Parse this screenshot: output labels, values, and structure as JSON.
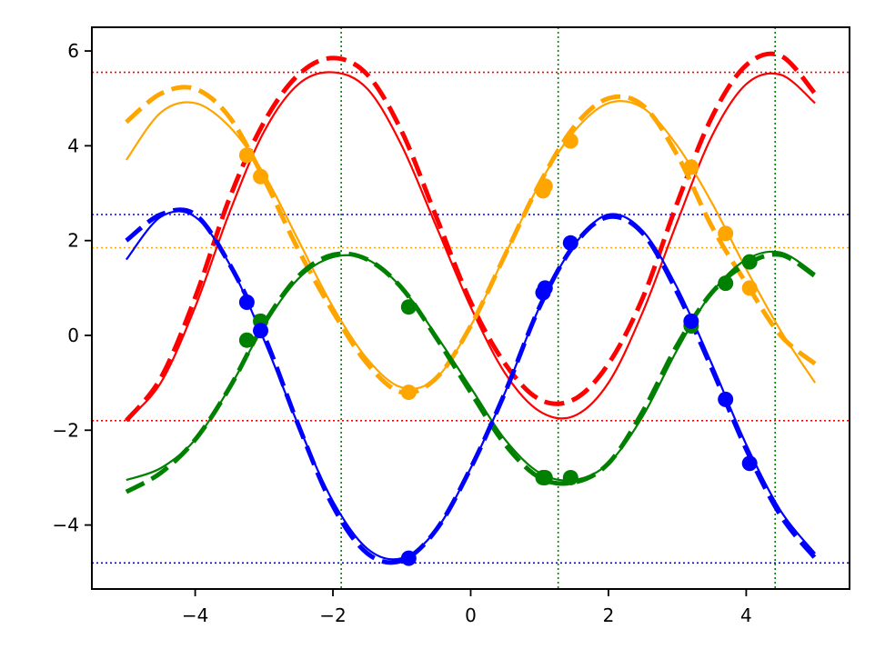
{
  "chart_data": {
    "type": "line",
    "title": "",
    "xlabel": "",
    "ylabel": "",
    "xlim": [
      -5.5,
      5.5
    ],
    "ylim": [
      -5.35,
      6.5
    ],
    "grid": false,
    "x_ticks": [
      -4,
      -2,
      0,
      2,
      4
    ],
    "x_tick_labels": [
      "−4",
      "−2",
      "0",
      "2",
      "4"
    ],
    "y_ticks": [
      -4,
      -2,
      0,
      2,
      4,
      6
    ],
    "y_tick_labels": [
      "−4",
      "−2",
      "0",
      "2",
      "4",
      "6"
    ],
    "series": [
      {
        "color": "#ff0000",
        "fit": {
          "x": [
            -5.0,
            -4.5,
            -4.0,
            -3.5,
            -3.0,
            -2.5,
            -2.0,
            -1.5,
            -1.0,
            -0.5,
            0.0,
            0.5,
            1.0,
            1.5,
            2.0,
            2.5,
            3.0,
            3.5,
            4.0,
            4.5,
            5.0
          ],
          "y": [
            -1.8,
            -1.0,
            0.6,
            2.6,
            4.3,
            5.3,
            5.55,
            5.2,
            4.0,
            2.3,
            0.6,
            -0.8,
            -1.6,
            -1.7,
            -1.0,
            0.5,
            2.4,
            4.2,
            5.3,
            5.5,
            4.9
          ]
        },
        "model": {
          "x": [
            -5.0,
            -4.5,
            -4.0,
            -3.5,
            -3.0,
            -2.5,
            -2.0,
            -1.5,
            -1.0,
            -0.5,
            0.0,
            0.5,
            1.0,
            1.5,
            2.0,
            2.5,
            3.0,
            3.5,
            4.0,
            4.5,
            5.0
          ],
          "y": [
            -1.8,
            -0.9,
            0.8,
            2.9,
            4.5,
            5.5,
            5.85,
            5.5,
            4.3,
            2.5,
            0.7,
            -0.6,
            -1.35,
            -1.35,
            -0.6,
            0.8,
            2.8,
            4.6,
            5.7,
            5.9,
            5.1
          ]
        },
        "points": {
          "x": [],
          "y": []
        },
        "hlines": [
          5.55,
          -1.8
        ]
      },
      {
        "color": "#ffa500",
        "fit": {
          "x": [
            -5.0,
            -4.5,
            -4.0,
            -3.5,
            -3.0,
            -2.5,
            -2.0,
            -1.5,
            -1.0,
            -0.5,
            0.0,
            0.5,
            1.0,
            1.5,
            2.0,
            2.5,
            3.0,
            3.5,
            4.0,
            4.5,
            5.0
          ],
          "y": [
            3.7,
            4.7,
            4.9,
            4.4,
            3.4,
            2.0,
            0.6,
            -0.5,
            -1.1,
            -0.9,
            0.2,
            1.7,
            3.2,
            4.3,
            4.9,
            4.8,
            4.0,
            2.8,
            1.4,
            0.1,
            -1.0
          ]
        },
        "model": {
          "x": [
            -5.0,
            -4.5,
            -4.0,
            -3.5,
            -3.0,
            -2.5,
            -2.0,
            -1.5,
            -1.0,
            -0.5,
            0.0,
            0.5,
            1.0,
            1.5,
            2.0,
            2.5,
            3.0,
            3.5,
            4.0,
            4.5,
            5.0
          ],
          "y": [
            4.5,
            5.1,
            5.2,
            4.6,
            3.3,
            1.8,
            0.5,
            -0.6,
            -1.2,
            -0.9,
            0.2,
            1.7,
            3.2,
            4.4,
            5.0,
            4.85,
            3.8,
            2.3,
            1.1,
            0.0,
            -0.6
          ]
        },
        "points": {
          "x": [
            -3.25,
            -3.05,
            -0.9,
            1.05,
            1.08,
            1.45,
            3.2,
            3.7,
            4.05
          ],
          "y": [
            3.8,
            3.35,
            -1.2,
            3.05,
            3.15,
            4.1,
            3.55,
            2.15,
            1.0
          ]
        },
        "hlines": [
          1.85
        ]
      },
      {
        "color": "#008000",
        "fit": {
          "x": [
            -5.0,
            -4.5,
            -4.0,
            -3.5,
            -3.0,
            -2.5,
            -2.0,
            -1.5,
            -1.0,
            -0.5,
            0.0,
            0.5,
            1.0,
            1.5,
            2.0,
            2.5,
            3.0,
            3.5,
            4.0,
            4.5,
            5.0
          ],
          "y": [
            -3.05,
            -2.8,
            -2.2,
            -1.1,
            0.2,
            1.2,
            1.65,
            1.6,
            1.0,
            0.0,
            -1.1,
            -2.2,
            -2.9,
            -3.05,
            -2.7,
            -1.7,
            -0.3,
            0.9,
            1.6,
            1.75,
            1.3
          ]
        },
        "model": {
          "x": [
            -5.0,
            -4.5,
            -4.0,
            -3.5,
            -3.0,
            -2.5,
            -2.0,
            -1.5,
            -1.0,
            -0.5,
            0.0,
            0.5,
            1.0,
            1.5,
            2.0,
            2.5,
            3.0,
            3.5,
            4.0,
            4.5,
            5.0
          ],
          "y": [
            -3.3,
            -2.9,
            -2.2,
            -1.1,
            0.25,
            1.25,
            1.7,
            1.6,
            1.0,
            -0.05,
            -1.2,
            -2.3,
            -3.0,
            -3.1,
            -2.7,
            -1.6,
            -0.2,
            0.9,
            1.5,
            1.7,
            1.25
          ]
        },
        "points": {
          "x": [
            -3.25,
            -3.05,
            -0.9,
            1.05,
            1.08,
            1.45,
            3.2,
            3.7,
            4.05
          ],
          "y": [
            -0.1,
            0.3,
            0.6,
            -3.0,
            -3.0,
            -3.0,
            0.2,
            1.1,
            1.55
          ]
        },
        "vlines": [
          -1.88,
          1.27,
          4.42
        ]
      },
      {
        "color": "#0000ff",
        "fit": {
          "x": [
            -5.0,
            -4.5,
            -4.0,
            -3.5,
            -3.0,
            -2.5,
            -2.0,
            -1.5,
            -1.0,
            -0.5,
            0.0,
            0.5,
            1.0,
            1.5,
            2.0,
            2.5,
            3.0,
            3.5,
            4.0,
            4.5,
            5.0
          ],
          "y": [
            1.6,
            2.5,
            2.5,
            1.5,
            -0.1,
            -1.9,
            -3.5,
            -4.5,
            -4.7,
            -4.1,
            -2.8,
            -1.2,
            0.6,
            1.9,
            2.55,
            2.2,
            1.0,
            -0.6,
            -2.3,
            -3.7,
            -4.6
          ]
        },
        "model": {
          "x": [
            -5.0,
            -4.5,
            -4.0,
            -3.5,
            -3.0,
            -2.5,
            -2.0,
            -1.5,
            -1.0,
            -0.5,
            0.0,
            0.5,
            1.0,
            1.5,
            2.0,
            2.5,
            3.0,
            3.5,
            4.0,
            4.5,
            5.0
          ],
          "y": [
            2.0,
            2.55,
            2.55,
            1.5,
            0.0,
            -1.9,
            -3.6,
            -4.6,
            -4.75,
            -4.1,
            -2.8,
            -1.2,
            0.6,
            1.9,
            2.5,
            2.15,
            0.9,
            -0.7,
            -2.4,
            -3.8,
            -4.7
          ]
        },
        "points": {
          "x": [
            -3.25,
            -3.05,
            -0.9,
            1.05,
            1.08,
            1.45,
            3.2,
            3.7,
            4.05
          ],
          "y": [
            0.7,
            0.1,
            -4.7,
            0.9,
            1.0,
            1.95,
            0.3,
            -1.35,
            -2.7
          ]
        },
        "hlines": [
          2.55,
          -4.8
        ]
      }
    ]
  }
}
